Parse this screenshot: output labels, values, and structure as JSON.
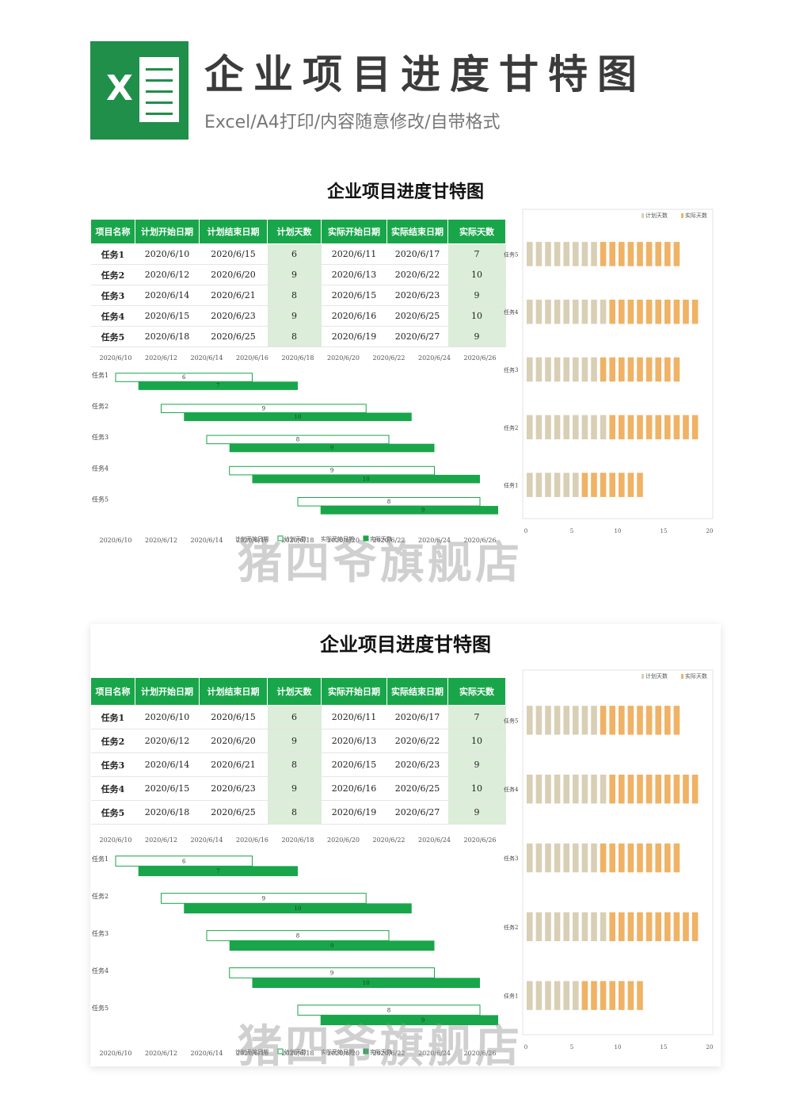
{
  "header": {
    "logo_letter": "X",
    "title": "企业项目进度甘特图",
    "subtitle": "Excel/A4打印/内容随意修改/自带格式"
  },
  "sheet": {
    "title": "企业项目进度甘特图",
    "columns": [
      "项目名称",
      "计划开始日期",
      "计划结束日期",
      "计划天数",
      "实际开始日期",
      "实际结束日期",
      "实际天数"
    ],
    "rows": [
      [
        "任务1",
        "2020/6/10",
        "2020/6/15",
        "6",
        "2020/6/11",
        "2020/6/17",
        "7"
      ],
      [
        "任务2",
        "2020/6/12",
        "2020/6/20",
        "9",
        "2020/6/13",
        "2020/6/22",
        "10"
      ],
      [
        "任务3",
        "2020/6/14",
        "2020/6/21",
        "8",
        "2020/6/15",
        "2020/6/23",
        "9"
      ],
      [
        "任务4",
        "2020/6/15",
        "2020/6/23",
        "9",
        "2020/6/16",
        "2020/6/25",
        "10"
      ],
      [
        "任务5",
        "2020/6/18",
        "2020/6/25",
        "8",
        "2020/6/19",
        "2020/6/27",
        "9"
      ]
    ]
  },
  "watermark": "猪四爷旗舰店",
  "colors": {
    "green": "#19a64a",
    "light_green": "#dcedd9",
    "plan_tan": "#d9cfb5",
    "actual_orange": "#f0b265"
  },
  "chart_data": [
    {
      "type": "bar",
      "orientation": "horizontal",
      "categories": [
        "任务1",
        "任务2",
        "任务3",
        "任务4",
        "任务5"
      ],
      "x_ticks": [
        "2020/6/10",
        "2020/6/12",
        "2020/6/14",
        "2020/6/16",
        "2020/6/18",
        "2020/6/20",
        "2020/6/22",
        "2020/6/24",
        "2020/6/26"
      ],
      "series": [
        {
          "name": "计划天数",
          "start": [
            "2020/6/10",
            "2020/6/12",
            "2020/6/14",
            "2020/6/15",
            "2020/6/18"
          ],
          "values": [
            6,
            9,
            8,
            9,
            8
          ]
        },
        {
          "name": "实际天数",
          "start": [
            "2020/6/11",
            "2020/6/13",
            "2020/6/15",
            "2020/6/16",
            "2020/6/19"
          ],
          "values": [
            7,
            10,
            9,
            10,
            9
          ]
        }
      ],
      "legend": [
        "计划开始日期",
        "计划天数",
        "实际开始日期",
        "实际天数"
      ],
      "legend_position": "bottom"
    },
    {
      "type": "bar",
      "orientation": "horizontal",
      "stacked": true,
      "categories": [
        "任务5",
        "任务4",
        "任务3",
        "任务2",
        "任务1"
      ],
      "series": [
        {
          "name": "计划天数",
          "values": [
            8,
            9,
            8,
            9,
            6
          ]
        },
        {
          "name": "实际天数",
          "values": [
            9,
            10,
            9,
            10,
            7
          ]
        }
      ],
      "x_ticks": [
        "0",
        "5",
        "10",
        "15",
        "20"
      ],
      "xlim": [
        0,
        20
      ],
      "legend_position": "top-right"
    }
  ]
}
